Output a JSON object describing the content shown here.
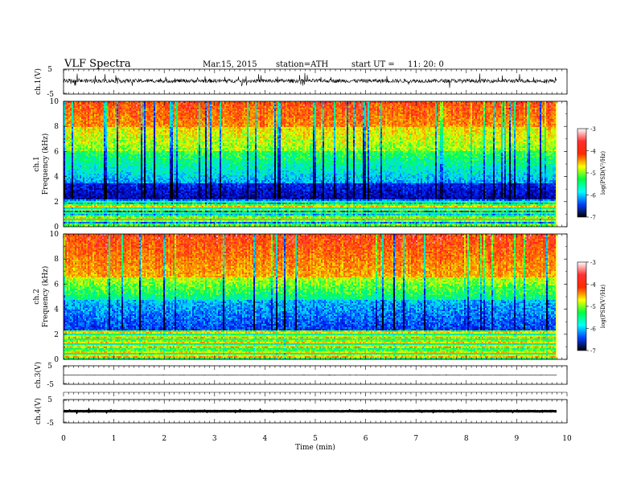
{
  "header": {
    "title": "VLF  Spectra",
    "date": "Mar.15, 2015",
    "station": "station=ATH",
    "start_label": "start  UT  =",
    "start_time": "11: 20: 0"
  },
  "colorbar": {
    "label": "log(PSD(V²/Hz)",
    "ticks": [
      "-3",
      "-4",
      "-5",
      "-6",
      "-7"
    ],
    "colors": [
      "#ffffff",
      "#ff3030",
      "#ff2a00",
      "#ffff00",
      "#00ff40",
      "#00ffff",
      "#0040ff",
      "#000000"
    ]
  },
  "chart_data": [
    {
      "panel": "ch1-waveform",
      "type": "line",
      "ylabel": "ch.1(V)",
      "ylim": [
        -5,
        5
      ],
      "ytick_labels": [
        "5",
        "-5"
      ],
      "xlim": [
        0,
        10
      ],
      "data_extent_min": 9.8,
      "baseline": 0.3,
      "noise_amplitude": 2.5
    },
    {
      "panel": "ch1-spectrogram",
      "type": "heatmap",
      "ylabel_channel": "ch.1",
      "ylabel": "Frequency  (kHz)",
      "ylim": [
        0,
        10
      ],
      "ytick_labels": [
        "0",
        "2",
        "4",
        "6",
        "8",
        "10"
      ],
      "xlim": [
        0,
        10
      ],
      "z_label": "log(PSD(V²/Hz)",
      "z_range": [
        -7,
        -3
      ],
      "bands": [
        {
          "from_khz": 0,
          "to_khz": 2.2,
          "description": "banded multicolor lines"
        },
        {
          "from_khz": 2.2,
          "to_khz": 3.5,
          "description": "dark blue"
        },
        {
          "from_khz": 3.5,
          "to_khz": 6,
          "description": "cyan-green"
        },
        {
          "from_khz": 6,
          "to_khz": 8,
          "description": "yellow"
        },
        {
          "from_khz": 8,
          "to_khz": 10,
          "description": "red-orange"
        }
      ]
    },
    {
      "panel": "ch2-spectrogram",
      "type": "heatmap",
      "ylabel_channel": "ch.2",
      "ylabel": "Frequency  (kHz)",
      "ylim": [
        0,
        10
      ],
      "ytick_labels": [
        "0",
        "2",
        "4",
        "6",
        "8",
        "10"
      ],
      "xlim": [
        0,
        10
      ],
      "z_label": "log(PSD(V²/Hz)",
      "z_range": [
        -7,
        -3
      ],
      "bands": [
        {
          "from_khz": 0,
          "to_khz": 2.3,
          "description": "banded yellow-green-orange lines"
        },
        {
          "from_khz": 2.3,
          "to_khz": 4.8,
          "description": "blue-cyan"
        },
        {
          "from_khz": 4.8,
          "to_khz": 6.5,
          "description": "green-yellow"
        },
        {
          "from_khz": 6.5,
          "to_khz": 10,
          "description": "red-orange-yellow"
        }
      ]
    },
    {
      "panel": "ch3-waveform",
      "type": "line",
      "ylabel": "ch.3(V)",
      "ylim": [
        -5,
        5
      ],
      "ytick_labels": [
        "5",
        "-5"
      ],
      "xlim": [
        0,
        10
      ],
      "data_extent_min": 9.8,
      "baseline": 0,
      "noise_amplitude": 0.2
    },
    {
      "panel": "ch4-waveform",
      "type": "line",
      "ylabel": "ch.4(V)",
      "ylim": [
        -5,
        5
      ],
      "ytick_labels": [
        "5",
        "-5"
      ],
      "xlim": [
        0,
        10
      ],
      "data_extent_min": 9.8,
      "baseline": 0,
      "noise_amplitude": 0.25
    }
  ],
  "x_axis": {
    "label": "Time  (min)",
    "ticks": [
      "0",
      "1",
      "2",
      "3",
      "4",
      "5",
      "6",
      "7",
      "8",
      "9",
      "10"
    ]
  }
}
